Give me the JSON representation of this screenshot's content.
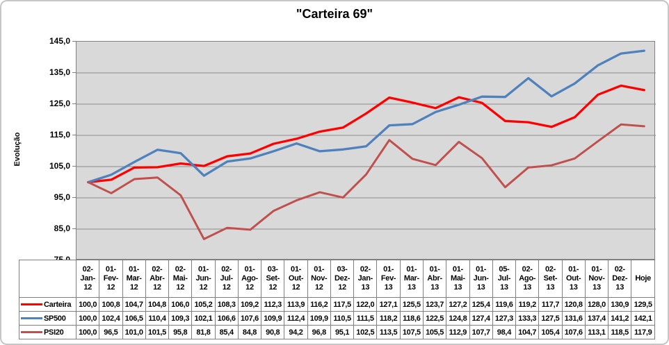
{
  "chart_data": {
    "type": "line",
    "title": "\"Carteira 69\"",
    "ylabel": "Evolução",
    "ylim": [
      75,
      145
    ],
    "ytick_step": 10,
    "ytick_labels": [
      "145,0",
      "135,0",
      "125,0",
      "115,0",
      "105,0",
      "95,0",
      "85,0",
      "75,0"
    ],
    "grid": true,
    "legend_position": "data-table-left",
    "plot_bg": "#d9d9d9",
    "grid_color": "#8c8c8c",
    "axis_color": "#808080",
    "decimal_separator": ",",
    "categories": [
      "02-Jan-12",
      "01-Fev-12",
      "01-Mar-12",
      "02-Abr-12",
      "02-Mai-12",
      "01-Jun-12",
      "02-Jul-12",
      "01-Ago-12",
      "03-Set-12",
      "01-Out-12",
      "01-Nov-12",
      "03-Dez-12",
      "02-Jan-13",
      "01-Fev-13",
      "01-Mar-13",
      "01-Abr-13",
      "01-Mai-13",
      "01-Jun-13",
      "05-Jul-13",
      "02-Ago-13",
      "02-Set-13",
      "01-Out-13",
      "01-Nov-13",
      "02-Dez-13",
      "Hoje"
    ],
    "series": [
      {
        "name": "Carteira",
        "color": "#ff0000",
        "line_width": 3.3,
        "values": [
          100.0,
          100.8,
          104.7,
          104.8,
          106.0,
          105.2,
          108.3,
          109.2,
          112.3,
          113.9,
          116.2,
          117.5,
          122.0,
          127.1,
          125.5,
          123.7,
          127.2,
          125.4,
          119.6,
          119.2,
          117.7,
          120.8,
          128.0,
          130.9,
          129.5
        ]
      },
      {
        "name": "SP500",
        "color": "#4f81bd",
        "line_width": 3.3,
        "values": [
          100.0,
          102.4,
          106.5,
          110.4,
          109.3,
          102.1,
          106.6,
          107.6,
          109.9,
          112.4,
          109.9,
          110.5,
          111.5,
          118.2,
          118.6,
          122.5,
          124.8,
          127.4,
          127.3,
          133.3,
          127.5,
          131.6,
          137.4,
          141.2,
          142.1
        ]
      },
      {
        "name": "PSI20",
        "color": "#c0504d",
        "line_width": 3.0,
        "values": [
          100.0,
          96.5,
          101.0,
          101.5,
          95.8,
          81.8,
          85.4,
          84.8,
          90.8,
          94.2,
          96.8,
          95.1,
          102.5,
          113.5,
          107.5,
          105.5,
          112.9,
          107.7,
          98.4,
          104.7,
          105.4,
          107.6,
          113.1,
          118.5,
          117.9
        ]
      }
    ]
  }
}
